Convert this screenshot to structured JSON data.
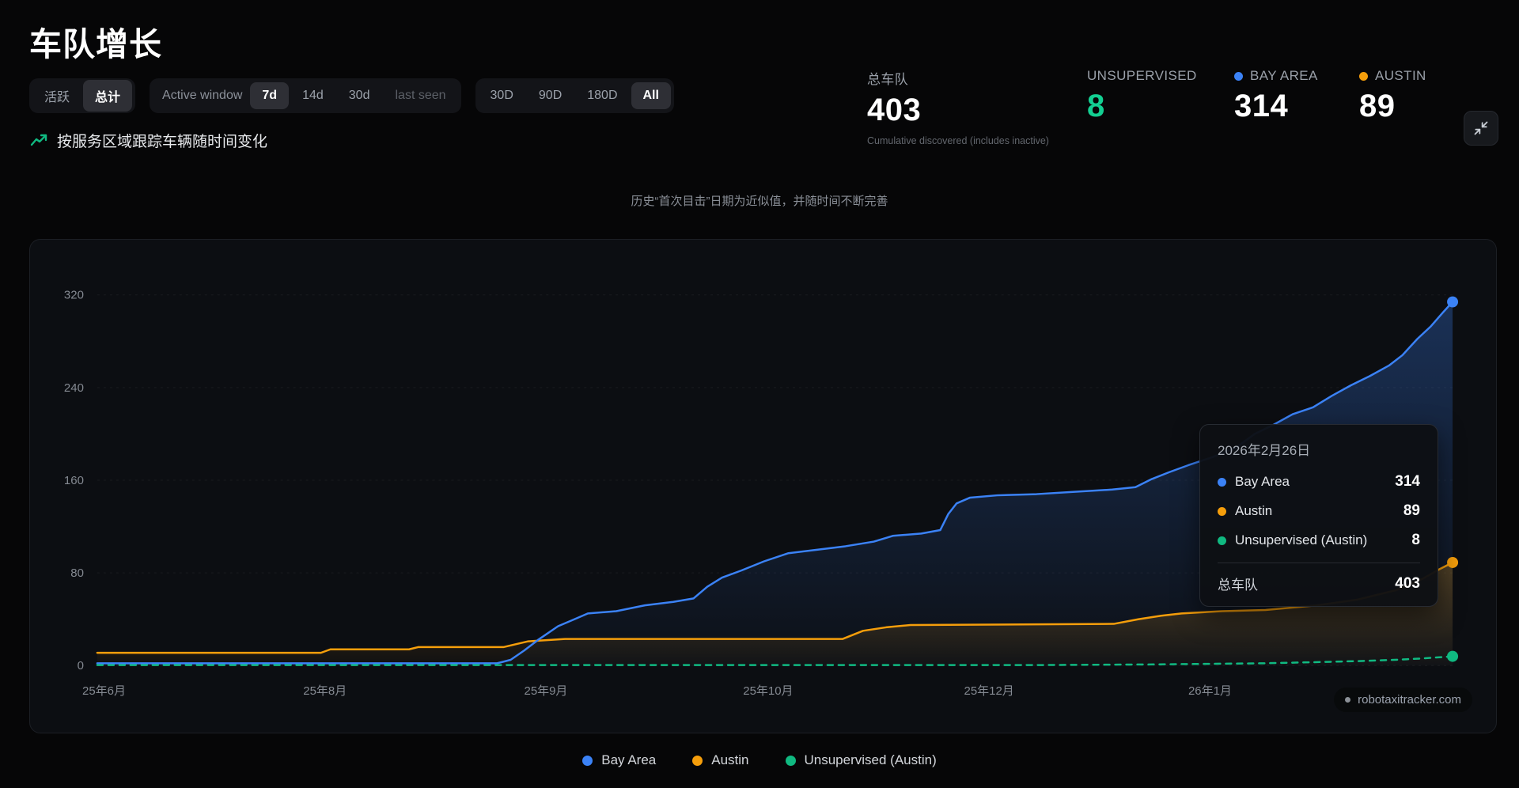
{
  "header": {
    "title": "车队增长",
    "subtitle": "按服务区域跟踪车辆随时间变化",
    "note": "历史“首次目击”日期为近似值，并随时间不断完善"
  },
  "controls": {
    "mode": {
      "options": [
        {
          "label": "活跃",
          "active": false
        },
        {
          "label": "总计",
          "active": true
        }
      ]
    },
    "active_window": {
      "label": "Active window",
      "options": [
        {
          "label": "7d",
          "active": true
        },
        {
          "label": "14d",
          "active": false
        },
        {
          "label": "30d",
          "active": false
        },
        {
          "label": "last seen",
          "active": false
        }
      ]
    },
    "range": {
      "options": [
        {
          "label": "30D",
          "active": false
        },
        {
          "label": "90D",
          "active": false
        },
        {
          "label": "180D",
          "active": false
        },
        {
          "label": "All",
          "active": true
        }
      ]
    }
  },
  "stats": [
    {
      "label": "总车队",
      "value": "403",
      "caption": "Cumulative discovered (includes inactive)",
      "color": "#ffffff"
    },
    {
      "label": "UNSUPERVISED",
      "value": "8",
      "color": "#13cf92"
    },
    {
      "label": "BAY AREA",
      "value": "314",
      "dot": "#3b82f6",
      "color": "#ffffff"
    },
    {
      "label": "AUSTIN",
      "value": "89",
      "dot": "#f59e0b",
      "color": "#ffffff"
    }
  ],
  "chart_data": {
    "type": "line",
    "title": "车队增长",
    "ylim": [
      0,
      320
    ],
    "yticks": [
      0,
      80,
      160,
      240,
      320
    ],
    "xticks": [
      {
        "label": "25年6月",
        "pos": 0.005
      },
      {
        "label": "25年8月",
        "pos": 0.168
      },
      {
        "label": "25年9月",
        "pos": 0.331
      },
      {
        "label": "25年10月",
        "pos": 0.495
      },
      {
        "label": "25年12月",
        "pos": 0.658
      },
      {
        "label": "26年1月",
        "pos": 0.821
      }
    ],
    "series": [
      {
        "name": "Bay Area",
        "color": "#3b82f6",
        "style": "solid",
        "fill": true,
        "end_value": 314,
        "points": [
          [
            0,
            2
          ],
          [
            0.295,
            2
          ],
          [
            0.305,
            5
          ],
          [
            0.315,
            13
          ],
          [
            0.325,
            22
          ],
          [
            0.34,
            34
          ],
          [
            0.352,
            40
          ],
          [
            0.362,
            45
          ],
          [
            0.383,
            47
          ],
          [
            0.404,
            52
          ],
          [
            0.425,
            55
          ],
          [
            0.44,
            58
          ],
          [
            0.45,
            68
          ],
          [
            0.461,
            76
          ],
          [
            0.475,
            82
          ],
          [
            0.492,
            90
          ],
          [
            0.51,
            97
          ],
          [
            0.531,
            100
          ],
          [
            0.552,
            103
          ],
          [
            0.573,
            107
          ],
          [
            0.587,
            112
          ],
          [
            0.608,
            114
          ],
          [
            0.622,
            117
          ],
          [
            0.628,
            131
          ],
          [
            0.634,
            140
          ],
          [
            0.644,
            145
          ],
          [
            0.664,
            147
          ],
          [
            0.693,
            148
          ],
          [
            0.721,
            150
          ],
          [
            0.749,
            152
          ],
          [
            0.766,
            154
          ],
          [
            0.778,
            161
          ],
          [
            0.791,
            167
          ],
          [
            0.805,
            173
          ],
          [
            0.823,
            180
          ],
          [
            0.84,
            188
          ],
          [
            0.854,
            200
          ],
          [
            0.868,
            208
          ],
          [
            0.882,
            217
          ],
          [
            0.897,
            223
          ],
          [
            0.911,
            233
          ],
          [
            0.925,
            242
          ],
          [
            0.939,
            250
          ],
          [
            0.953,
            259
          ],
          [
            0.963,
            268
          ],
          [
            0.974,
            282
          ],
          [
            0.984,
            293
          ],
          [
            0.993,
            305
          ],
          [
            1,
            314
          ]
        ]
      },
      {
        "name": "Austin",
        "color": "#f59e0b",
        "style": "solid",
        "fill": true,
        "end_value": 89,
        "points": [
          [
            0,
            11
          ],
          [
            0.165,
            11
          ],
          [
            0.172,
            14
          ],
          [
            0.23,
            14
          ],
          [
            0.237,
            16
          ],
          [
            0.3,
            16
          ],
          [
            0.318,
            21
          ],
          [
            0.345,
            23
          ],
          [
            0.55,
            23
          ],
          [
            0.565,
            30
          ],
          [
            0.582,
            33
          ],
          [
            0.6,
            35
          ],
          [
            0.75,
            36
          ],
          [
            0.768,
            40
          ],
          [
            0.785,
            43
          ],
          [
            0.8,
            45
          ],
          [
            0.83,
            47
          ],
          [
            0.862,
            48
          ],
          [
            0.9,
            52
          ],
          [
            0.93,
            57
          ],
          [
            0.958,
            65
          ],
          [
            0.978,
            75
          ],
          [
            0.99,
            83
          ],
          [
            1,
            89
          ]
        ]
      },
      {
        "name": "Unsupervised (Austin)",
        "color": "#10b981",
        "style": "dashed",
        "fill": false,
        "end_value": 8,
        "points": [
          [
            0,
            0.5
          ],
          [
            0.7,
            0.5
          ],
          [
            0.78,
            1
          ],
          [
            0.86,
            2
          ],
          [
            0.9,
            3
          ],
          [
            0.935,
            4
          ],
          [
            0.957,
            5
          ],
          [
            0.975,
            6
          ],
          [
            0.988,
            7
          ],
          [
            1,
            8
          ]
        ]
      }
    ],
    "tooltip": {
      "date": "2026年2月26日",
      "rows": [
        {
          "label": "Bay Area",
          "value": "314",
          "color": "#3b82f6"
        },
        {
          "label": "Austin",
          "value": "89",
          "color": "#f59e0b"
        },
        {
          "label": "Unsupervised (Austin)",
          "value": "8",
          "color": "#10b981"
        }
      ],
      "total_label": "总车队",
      "total_value": "403"
    },
    "legend": [
      {
        "label": "Bay Area",
        "color": "#3b82f6"
      },
      {
        "label": "Austin",
        "color": "#f59e0b"
      },
      {
        "label": "Unsupervised (Austin)",
        "color": "#10b981"
      }
    ],
    "watermark": "robotaxitracker.com"
  }
}
